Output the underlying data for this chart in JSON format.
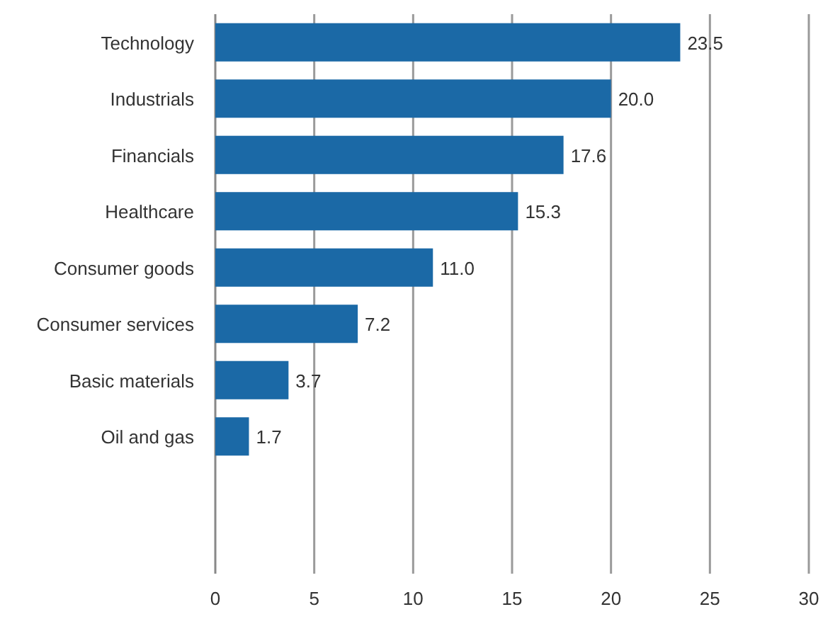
{
  "chart_data": {
    "type": "bar",
    "orientation": "horizontal",
    "categories": [
      "Technology",
      "Industrials",
      "Financials",
      "Healthcare",
      "Consumer goods",
      "Consumer services",
      "Basic materials",
      "Oil and gas"
    ],
    "values": [
      23.5,
      20.0,
      17.6,
      15.3,
      11.0,
      7.2,
      3.7,
      1.7
    ],
    "color": "#1b69a6",
    "xlim": [
      0,
      30
    ],
    "xticks": [
      0,
      5,
      10,
      15,
      20,
      25,
      30
    ],
    "grid": "x",
    "value_labels": [
      "23.5",
      "20.0",
      "17.6",
      "15.3",
      "11.0",
      "7.2",
      "3.7",
      "1.7"
    ]
  }
}
